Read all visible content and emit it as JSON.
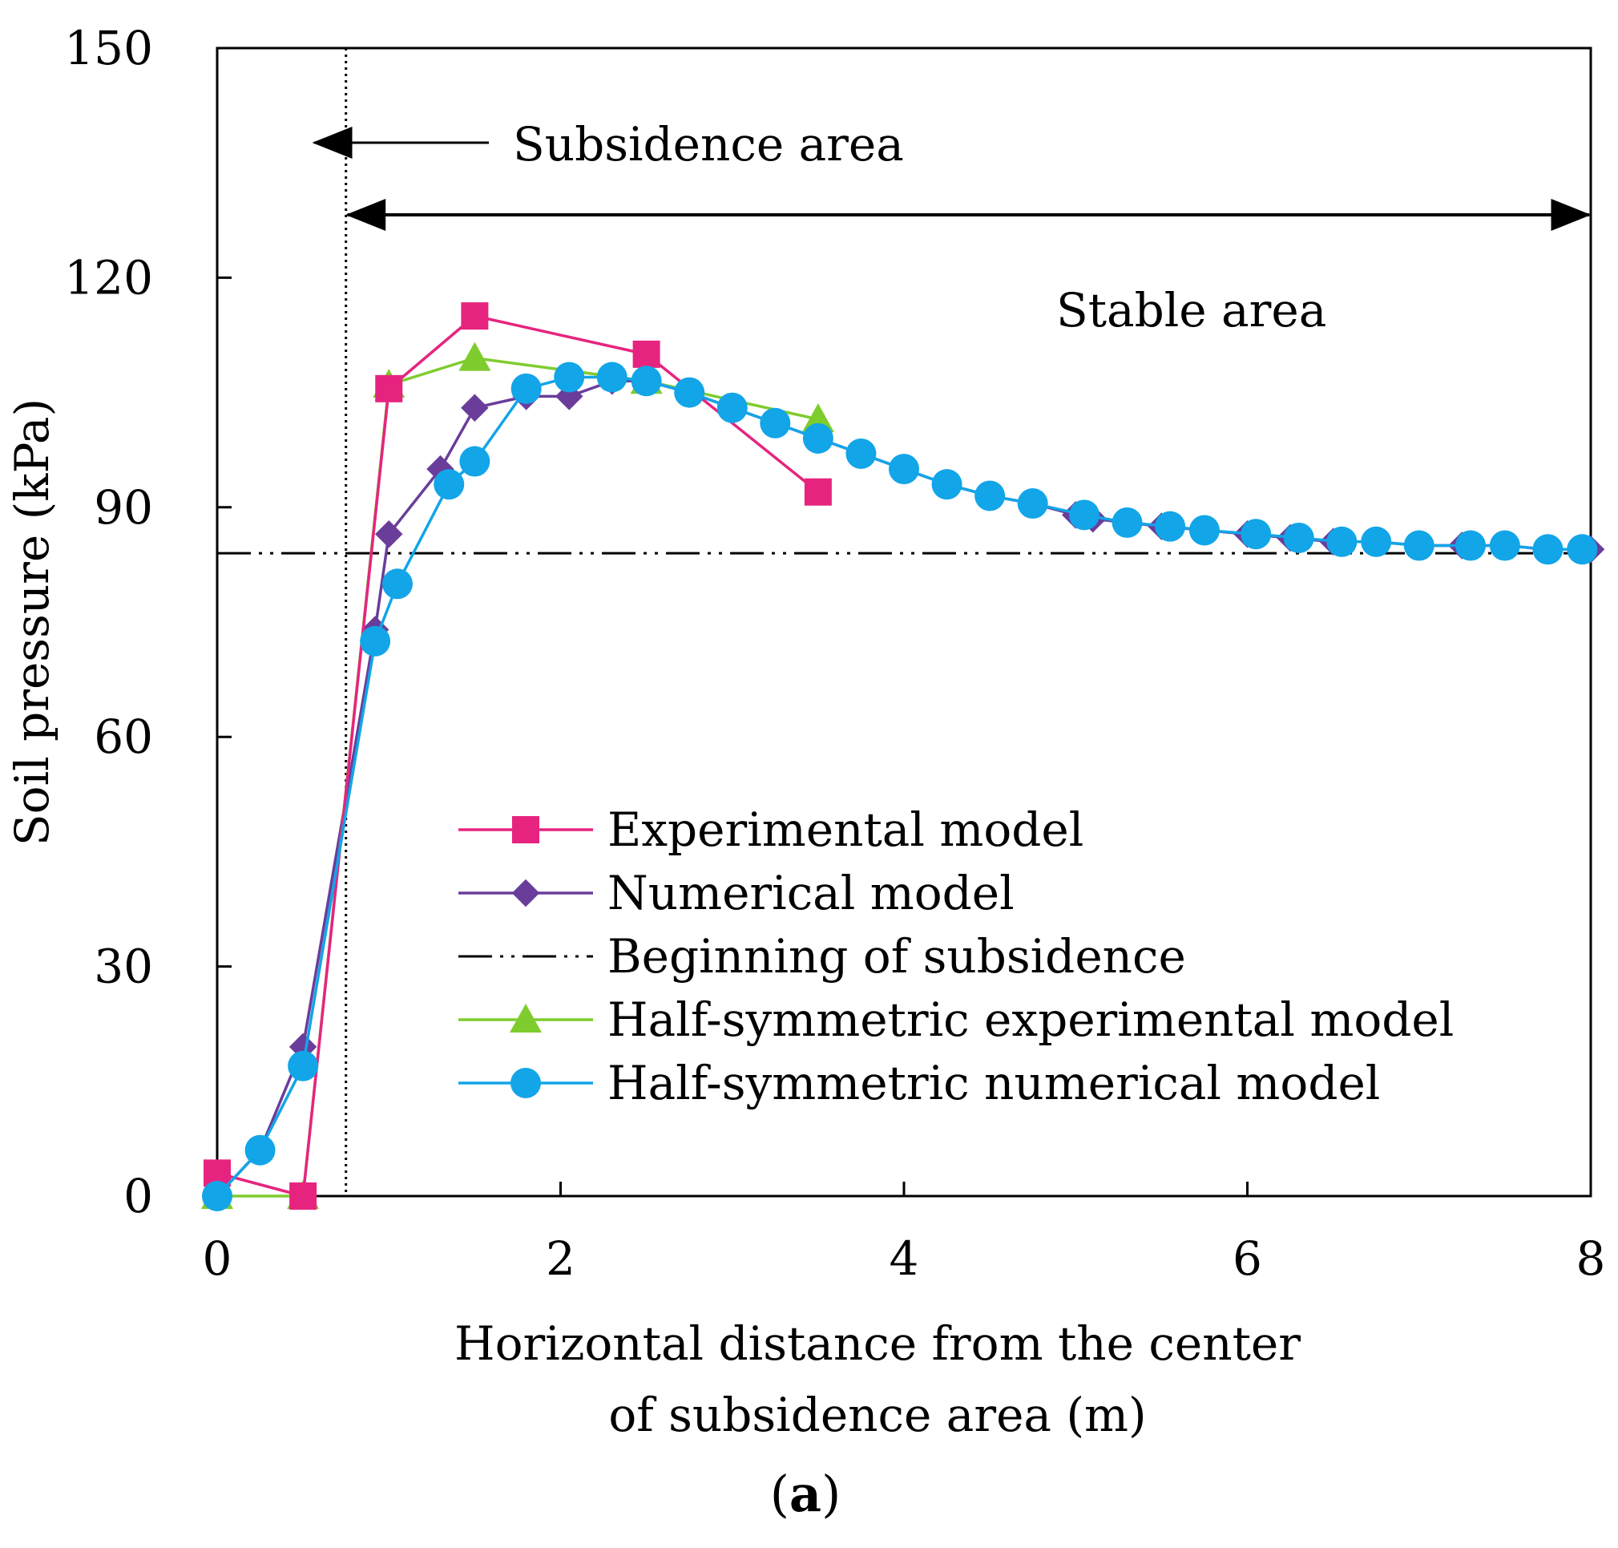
{
  "chart_data": {
    "type": "line",
    "panel_label": "a",
    "xlabel_lines": [
      "Horizontal distance from the center",
      "of subsidence area (m)"
    ],
    "ylabel": "Soil pressure (kPa)",
    "xlim": [
      0,
      8
    ],
    "ylim": [
      0,
      150
    ],
    "xticks": [
      0,
      2,
      4,
      6,
      8
    ],
    "yticks": [
      0,
      30,
      60,
      90,
      120,
      150
    ],
    "grid": false,
    "legend_position": "center",
    "annotations": {
      "subsidence_area": "Subsidence area",
      "stable_area": "Stable area",
      "subsidence_boundary_x": 0.75
    },
    "series": [
      {
        "name": "Experimental model",
        "color": "#e6247f",
        "marker": "square",
        "x": [
          0,
          0.5,
          1.0,
          1.5,
          2.5,
          3.5
        ],
        "y": [
          3,
          0,
          105.5,
          115,
          110,
          92
        ]
      },
      {
        "name": "Numerical model",
        "color": "#6a3d9a",
        "marker": "diamond",
        "x": [
          0,
          0.25,
          0.5,
          0.92,
          1.0,
          1.3,
          1.5,
          1.8,
          2.05,
          2.3,
          2.5,
          2.75,
          3.0,
          3.25,
          3.5,
          3.75,
          4.0,
          4.25,
          4.5,
          4.75,
          5.0,
          5.1,
          5.3,
          5.5,
          5.75,
          6.0,
          6.25,
          6.5,
          6.75,
          7.0,
          7.25,
          7.5,
          7.75,
          8.0
        ],
        "y": [
          0,
          6,
          19.5,
          74,
          86.5,
          95,
          103,
          104.5,
          104.5,
          106.5,
          106.5,
          105,
          103,
          101,
          99,
          97,
          95,
          93,
          91.5,
          90.5,
          89,
          88.5,
          88,
          87.5,
          87,
          86.5,
          86,
          85.5,
          85.5,
          85,
          85,
          85,
          84.5,
          84.5
        ]
      },
      {
        "name": "Beginning of subsidence",
        "color": "#000000",
        "style": "dash-dot-dot",
        "x": [
          0,
          8
        ],
        "y": [
          84,
          84
        ]
      },
      {
        "name": "Half-symmetric experimental model",
        "color": "#7fcc2e",
        "marker": "triangle",
        "x": [
          0,
          0.5,
          1.0,
          1.5,
          2.5,
          3.5
        ],
        "y": [
          0,
          0,
          106,
          109.5,
          106.5,
          101.5
        ]
      },
      {
        "name": "Half-symmetric numerical model",
        "color": "#12a5e8",
        "marker": "circle",
        "x": [
          0,
          0.25,
          0.5,
          0.92,
          1.05,
          1.35,
          1.5,
          1.8,
          2.05,
          2.3,
          2.5,
          2.75,
          3.0,
          3.25,
          3.5,
          3.75,
          4.0,
          4.25,
          4.5,
          4.75,
          5.05,
          5.3,
          5.55,
          5.75,
          6.05,
          6.3,
          6.55,
          6.75,
          7.0,
          7.3,
          7.5,
          7.75,
          7.95
        ],
        "y": [
          0,
          6,
          17,
          72.5,
          80,
          93,
          96,
          105.5,
          107,
          107,
          106.5,
          105,
          103,
          101,
          99,
          97,
          95,
          93,
          91.5,
          90.5,
          89,
          88,
          87.5,
          87,
          86.5,
          86,
          85.5,
          85.5,
          85,
          85,
          85,
          84.5,
          84.5
        ]
      }
    ]
  }
}
